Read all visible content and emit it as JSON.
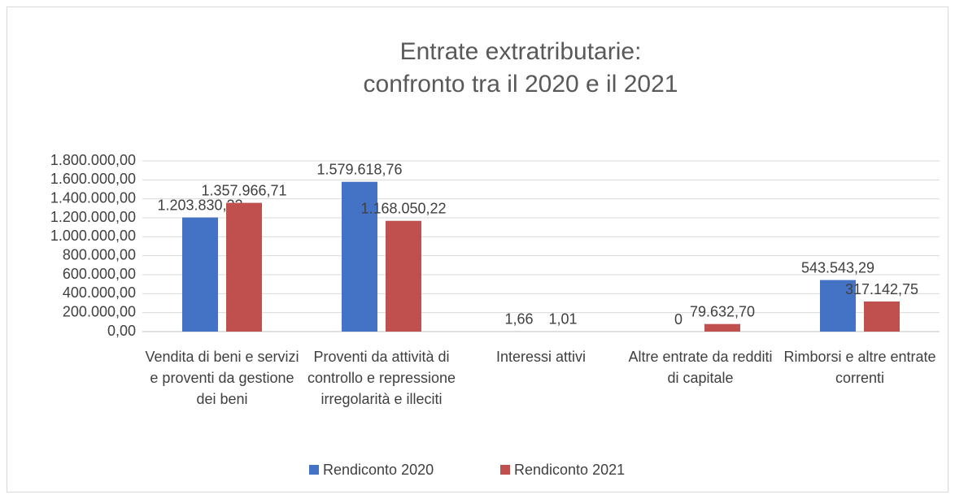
{
  "chart_data": {
    "type": "bar",
    "title": [
      "Entrate extratributarie:",
      "confronto tra il 2020 e il 2021"
    ],
    "categories": [
      "Vendita di beni e servizi e proventi da gestione dei beni",
      "Proventi da attività di controllo e repressione irregolarità e illeciti",
      "Interessi attivi",
      "Altre entrate da redditi di capitale",
      "Rimborsi e altre entrate correnti"
    ],
    "series": [
      {
        "name": "Rendiconto 2020",
        "color": "#4472c4",
        "values": [
          1203830.22,
          1579618.76,
          1.66,
          0,
          543543.29
        ],
        "value_labels": [
          "1.203.830,22",
          "1.579.618,76",
          "1,66",
          "0",
          "543.543,29"
        ]
      },
      {
        "name": "Rendiconto 2021",
        "color": "#c0504d",
        "values": [
          1357966.71,
          1168050.22,
          1.01,
          79632.7,
          317142.75
        ],
        "value_labels": [
          "1.357.966,71",
          "1.168.050,22",
          "1,01",
          "79.632,70",
          "317.142,75"
        ]
      }
    ],
    "ylim": [
      0,
      1800000
    ],
    "yticks": [
      {
        "value": 0,
        "label": "0,00"
      },
      {
        "value": 200000,
        "label": "200.000,00"
      },
      {
        "value": 400000,
        "label": "400.000,00"
      },
      {
        "value": 600000,
        "label": "600.000,00"
      },
      {
        "value": 800000,
        "label": "800.000,00"
      },
      {
        "value": 1000000,
        "label": "1.000.000,00"
      },
      {
        "value": 1200000,
        "label": "1.200.000,00"
      },
      {
        "value": 1400000,
        "label": "1.400.000,00"
      },
      {
        "value": 1600000,
        "label": "1.600.000,00"
      },
      {
        "value": 1800000,
        "label": "1.800.000,00"
      }
    ],
    "grid": true,
    "legend": "bottom"
  }
}
